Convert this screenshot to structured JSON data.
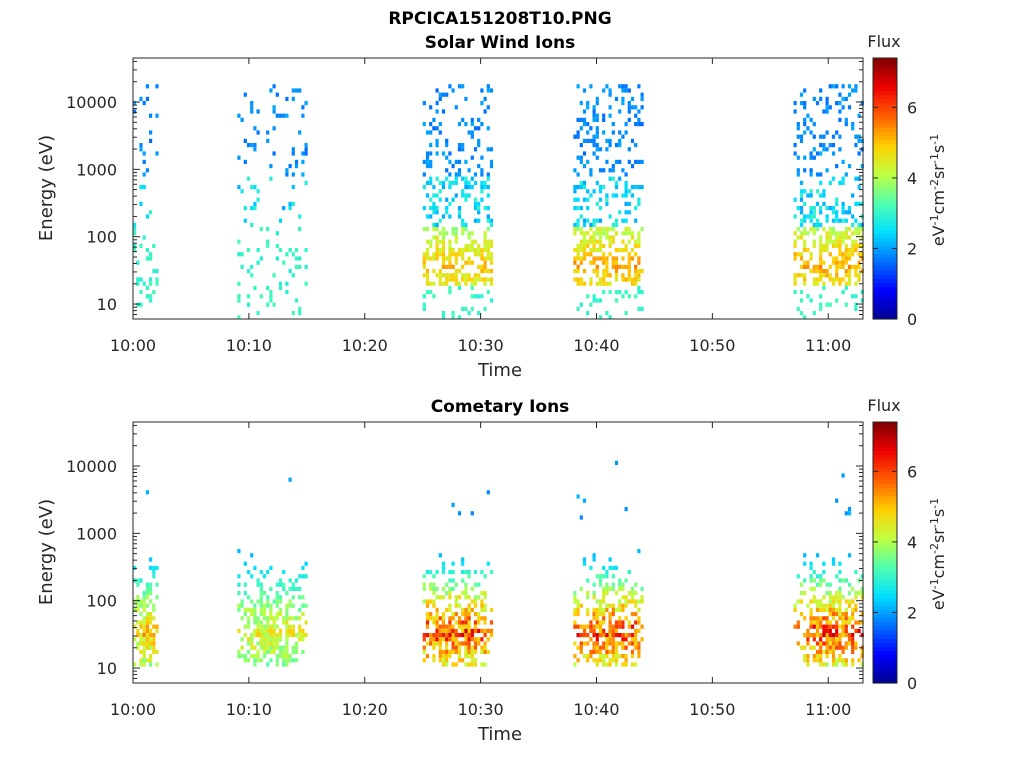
{
  "figure": {
    "main_title": "RPCICA151208T10.PNG"
  },
  "colors": {
    "axis": "#262626",
    "colormap": [
      "#00008f",
      "#0000ff",
      "#0070ff",
      "#00dfff",
      "#50ffaf",
      "#bfff40",
      "#ffcf00",
      "#ff6000",
      "#ef0000",
      "#800000"
    ]
  },
  "chart_data": [
    {
      "type": "heatmap",
      "title": "Solar Wind Ions",
      "xlabel": "Time",
      "ylabel": "Energy (eV)",
      "x_ticks": [
        "10:00",
        "10:10",
        "10:20",
        "10:30",
        "10:40",
        "10:50",
        "11:00"
      ],
      "y_ticks": [
        "10",
        "100",
        "1000",
        "10000"
      ],
      "y_scale": "log",
      "xlim": [
        "10:00",
        "11:03"
      ],
      "ylim": [
        6,
        45000
      ],
      "colorbar": {
        "label": "Flux",
        "units": "eV-1cm-2sr-1s-1",
        "ticks": [
          "0",
          "2",
          "4",
          "6"
        ],
        "range": [
          0,
          7.4
        ]
      },
      "bursts": [
        {
          "start": "10:00",
          "end": "10:02",
          "low_energy_flux": 3.0,
          "sparse": true
        },
        {
          "start": "10:09",
          "end": "10:15",
          "low_energy_flux": 3.0,
          "sparse": true
        },
        {
          "start": "10:25",
          "end": "10:31",
          "low_energy_flux": 4.6,
          "sparse": false
        },
        {
          "start": "10:38",
          "end": "10:44",
          "low_energy_flux": 4.8,
          "sparse": false
        },
        {
          "start": "10:57",
          "end": "11:03",
          "low_energy_flux": 4.8,
          "sparse": false
        }
      ]
    },
    {
      "type": "heatmap",
      "title": "Cometary Ions",
      "xlabel": "Time",
      "ylabel": "Energy (eV)",
      "x_ticks": [
        "10:00",
        "10:10",
        "10:20",
        "10:30",
        "10:40",
        "10:50",
        "11:00"
      ],
      "y_ticks": [
        "10",
        "100",
        "1000",
        "10000"
      ],
      "y_scale": "log",
      "xlim": [
        "10:00",
        "11:03"
      ],
      "ylim": [
        6,
        45000
      ],
      "colorbar": {
        "label": "Flux",
        "units": "eV-1cm-2sr-1s-1",
        "ticks": [
          "0",
          "2",
          "4",
          "6"
        ],
        "range": [
          0,
          7.4
        ]
      },
      "bursts": [
        {
          "start": "10:00",
          "end": "10:02",
          "peak_flux": 5.5
        },
        {
          "start": "10:09",
          "end": "10:15",
          "peak_flux": 5.0
        },
        {
          "start": "10:25",
          "end": "10:31",
          "peak_flux": 6.8
        },
        {
          "start": "10:38",
          "end": "10:44",
          "peak_flux": 6.8
        },
        {
          "start": "10:57",
          "end": "11:03",
          "peak_flux": 6.8
        }
      ]
    }
  ]
}
